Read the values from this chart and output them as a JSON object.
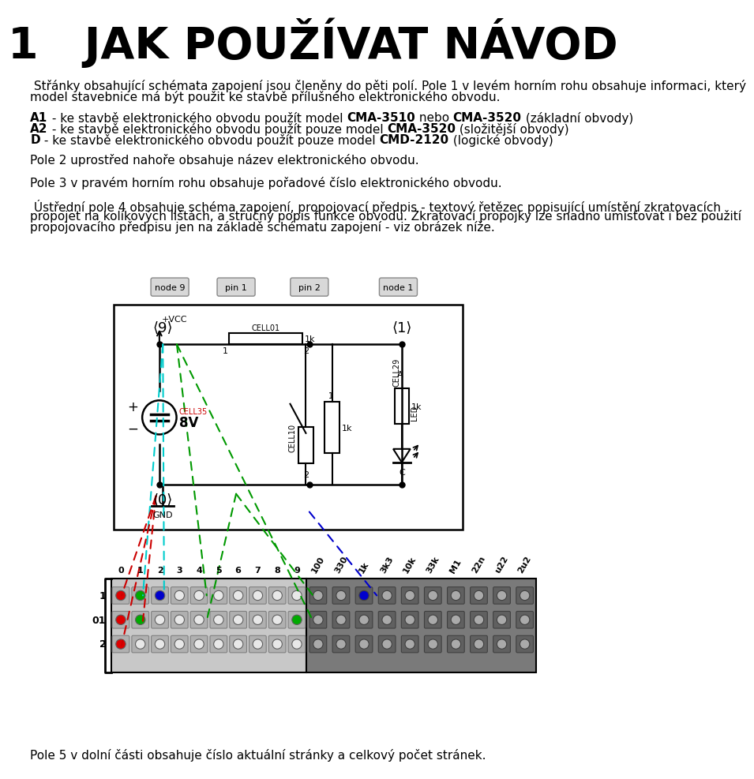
{
  "bg_color": "#ffffff",
  "text_color": "#000000",
  "title": "1   JAK POUŽÍVAT NÁVOD",
  "para1_line1": " Střánky obsahující schémata zapojení jsou členěny do pěti polí. Pole 1 v levém horním rohu obsahuje informaci, který",
  "para1_line2": "model stavebnice má být použit ke stavbě přílušného elektronického obvodu.",
  "a1_pre": "A1",
  "a1_mid": " - ke stavbě elektronického obvodu použít model ",
  "a1_b1": "CMA-3510",
  "a1_mid2": " nebo ",
  "a1_b2": "CMA-3520",
  "a1_post": " (základní obvody)",
  "a2_pre": "A2",
  "a2_mid": " - ke stavbě elektronického obvodu použít pouze model ",
  "a2_b1": "CMA-3520",
  "a2_post": " (složitější obvody)",
  "d_pre": "D",
  "d_mid": " - ke stavbě elektronického obvodu použít pouze model ",
  "d_b1": "CMD-2120",
  "d_post": " (logické obvody)",
  "para3": "Pole 2 uprostřed nahoře obsahuje název elektronického obvodu.",
  "para4": "Pole 3 v pravém horním rohu obsahuje pořadové číslo elektronického obvodu.",
  "para5_line1": " Ústřední pole 4 obsahuje schéma zapojení, propojovací předpis - textový řetězec popisující umístění zkratovacích",
  "para5_line2": "propojet na kolíkových lištách, a stručný popis funkce obvodu. Zkratovací propojky lze snadno umísťovat i bez použití",
  "para5_line3": "propojovacího předpisu jen na základě schématu zapojení - viz obrázek níže.",
  "para6": "Pole 5 v dolní části obsahuje číslo aktuální stránky a celkový počet stránek.",
  "col_labels": [
    "0",
    "1",
    "2",
    "3",
    "4",
    "5",
    "6",
    "7",
    "8",
    "9",
    "100",
    "330",
    "1k",
    "3k3",
    "10k",
    "33k",
    "M1",
    "22n",
    "u22",
    "2u2"
  ]
}
